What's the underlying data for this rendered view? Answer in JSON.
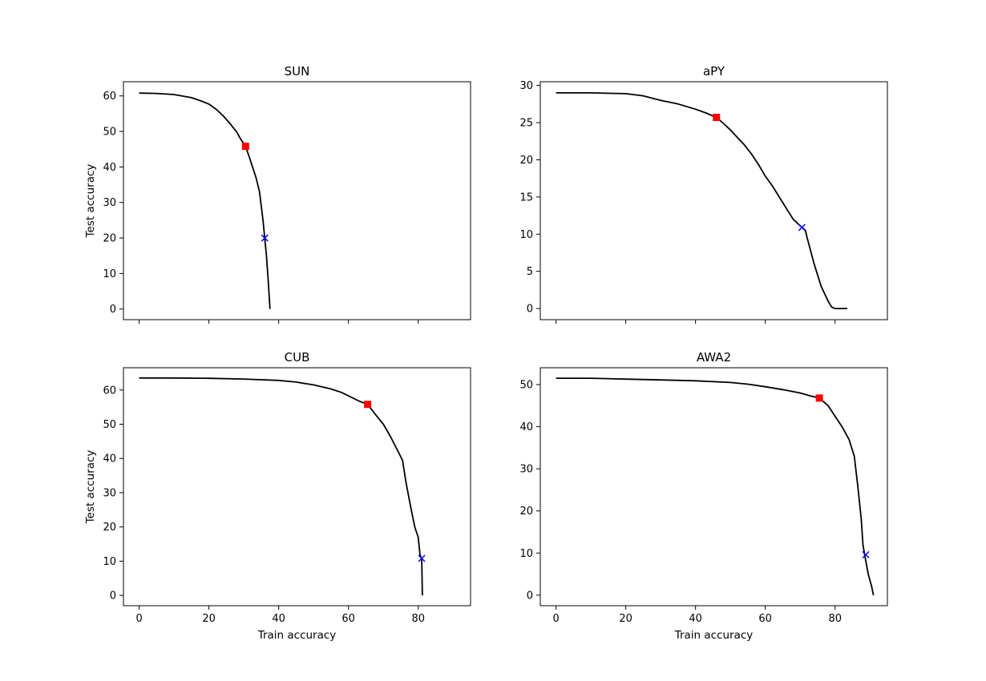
{
  "chart_data": [
    {
      "type": "line",
      "title": "SUN",
      "xlabel": "",
      "ylabel": "Test accuracy",
      "xlim": [
        -4.5,
        95
      ],
      "ylim": [
        -3,
        64
      ],
      "xticks": [
        0,
        20,
        40,
        60,
        80
      ],
      "yticks": [
        0,
        10,
        20,
        30,
        40,
        50,
        60
      ],
      "show_x_tick_labels": false,
      "grid": false,
      "x": [
        0,
        5,
        10,
        15,
        18,
        20,
        22,
        24,
        26,
        28,
        29,
        30.5,
        31.5,
        32.5,
        33.5,
        34.5,
        35,
        35.5,
        36,
        36.5,
        37,
        37.5
      ],
      "y": [
        60.8,
        60.7,
        60.4,
        59.5,
        58.5,
        57.7,
        56.3,
        54.5,
        52.3,
        49.8,
        48,
        45.8,
        43,
        40,
        37,
        33,
        29,
        25,
        20,
        15,
        8,
        0
      ],
      "markers": [
        {
          "type": "square",
          "color": "#ff0000",
          "x": 30.5,
          "y": 45.8
        },
        {
          "type": "x",
          "color": "#0000ff",
          "x": 36,
          "y": 20
        }
      ]
    },
    {
      "type": "line",
      "title": "aPY",
      "xlabel": "",
      "ylabel": "",
      "xlim": [
        -4.5,
        95
      ],
      "ylim": [
        -1.5,
        30.5
      ],
      "xticks": [
        0,
        20,
        40,
        60,
        80
      ],
      "yticks": [
        0,
        5,
        10,
        15,
        20,
        25,
        30
      ],
      "show_x_tick_labels": false,
      "grid": false,
      "x": [
        0,
        10,
        20,
        25,
        30,
        35,
        40,
        43,
        46,
        48,
        50,
        52,
        54,
        56,
        58,
        60,
        62,
        64,
        66,
        68,
        70.5,
        71.5,
        72,
        74,
        76,
        78,
        79,
        80,
        83.5
      ],
      "y": [
        29,
        29,
        28.9,
        28.6,
        28,
        27.5,
        26.8,
        26.3,
        25.7,
        24.9,
        24,
        23,
        22,
        20.8,
        19.4,
        17.8,
        16.5,
        15,
        13.5,
        12,
        10.9,
        10.5,
        9.5,
        6,
        3,
        1,
        0.2,
        0,
        0
      ],
      "markers": [
        {
          "type": "square",
          "color": "#ff0000",
          "x": 46,
          "y": 25.7
        },
        {
          "type": "x",
          "color": "#0000ff",
          "x": 70.5,
          "y": 10.9
        }
      ]
    },
    {
      "type": "line",
      "title": "CUB",
      "xlabel": "Train accuracy",
      "ylabel": "Test accuracy",
      "xlim": [
        -4.5,
        95
      ],
      "ylim": [
        -3,
        66.5
      ],
      "xticks": [
        0,
        20,
        40,
        60,
        80
      ],
      "yticks": [
        0,
        10,
        20,
        30,
        40,
        50,
        60
      ],
      "show_x_tick_labels": true,
      "grid": false,
      "x": [
        0,
        10,
        20,
        30,
        40,
        45,
        50,
        55,
        58,
        61,
        63,
        65.5,
        68,
        70,
        72,
        74,
        75.5,
        76.5,
        78,
        79,
        80,
        80.5,
        81,
        81.2
      ],
      "y": [
        63.5,
        63.5,
        63.4,
        63.2,
        62.8,
        62.3,
        61.5,
        60.3,
        59.3,
        57.8,
        56.8,
        55.8,
        52.5,
        50,
        46.5,
        42.5,
        39.5,
        33,
        25,
        20,
        17,
        12,
        10.5,
        0
      ],
      "markers": [
        {
          "type": "square",
          "color": "#ff0000",
          "x": 65.5,
          "y": 55.8
        },
        {
          "type": "x",
          "color": "#0000ff",
          "x": 81,
          "y": 10.8
        }
      ]
    },
    {
      "type": "line",
      "title": "AWA2",
      "xlabel": "Train accuracy",
      "ylabel": "",
      "xlim": [
        -4.5,
        95
      ],
      "ylim": [
        -2.5,
        54
      ],
      "xticks": [
        0,
        20,
        40,
        60,
        80
      ],
      "yticks": [
        0,
        10,
        20,
        30,
        40,
        50
      ],
      "show_x_tick_labels": true,
      "grid": false,
      "x": [
        0,
        10,
        20,
        30,
        40,
        50,
        55,
        60,
        65,
        70,
        73,
        75.5,
        78,
        80,
        82,
        84,
        85.5,
        86.5,
        87.5,
        88,
        88.5,
        89.5,
        90.5,
        91
      ],
      "y": [
        51.5,
        51.5,
        51.3,
        51.1,
        50.9,
        50.5,
        50.1,
        49.5,
        48.8,
        48,
        47.3,
        46.8,
        45,
        42.5,
        40,
        37,
        33,
        26,
        18,
        12,
        9.5,
        5,
        2,
        0
      ],
      "markers": [
        {
          "type": "square",
          "color": "#ff0000",
          "x": 75.5,
          "y": 46.8
        },
        {
          "type": "x",
          "color": "#0000ff",
          "x": 88.8,
          "y": 9.6
        }
      ]
    }
  ]
}
